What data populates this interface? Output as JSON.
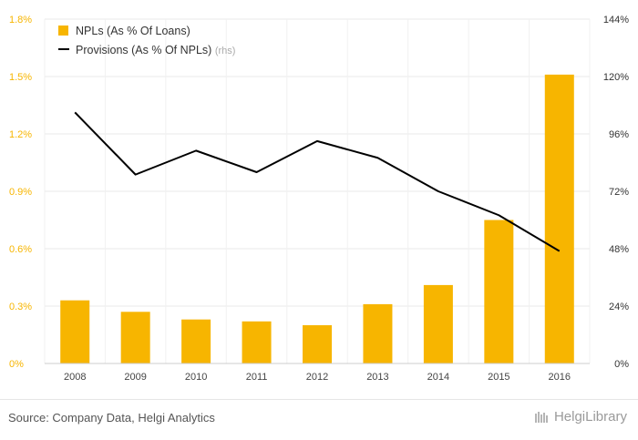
{
  "chart_data": {
    "type": "bar",
    "categories": [
      "2008",
      "2009",
      "2010",
      "2011",
      "2012",
      "2013",
      "2014",
      "2015",
      "2016"
    ],
    "series": [
      {
        "name": "NPLs (As % Of Loans)",
        "type": "bar",
        "axis": "left",
        "color": "#f7b500",
        "values": [
          0.33,
          0.27,
          0.23,
          0.22,
          0.2,
          0.31,
          0.41,
          0.75,
          1.51
        ]
      },
      {
        "name": "Provisions (As % Of NPLs)",
        "legend_suffix": "(rhs)",
        "type": "line",
        "axis": "right",
        "color": "#000000",
        "values": [
          105,
          79,
          89,
          80,
          93,
          86,
          72,
          62,
          47
        ]
      }
    ],
    "left_axis": {
      "ticks": [
        "0%",
        "0.3%",
        "0.6%",
        "0.9%",
        "1.2%",
        "1.5%",
        "1.8%"
      ],
      "ylim": [
        0,
        1.8
      ],
      "color": "#f7b500"
    },
    "right_axis": {
      "ticks": [
        "0%",
        "24%",
        "48%",
        "72%",
        "96%",
        "120%",
        "144%"
      ],
      "ylim": [
        0,
        144
      ],
      "color": "#333333"
    },
    "grid": true,
    "legend_position": "top-left"
  },
  "footer": {
    "source": "Source: Company Data, Helgi Analytics",
    "brand": "HelgiLibrary"
  }
}
